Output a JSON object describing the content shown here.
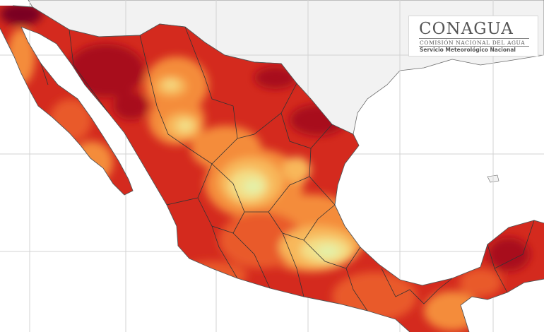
{
  "map": {
    "colors": {
      "background": "#ffffff",
      "ocean_gray": "#f0f0f0",
      "graticule": "#cfcfcf",
      "coastline": "#555555",
      "state_borders": "#333333",
      "scale": [
        "#7a0020",
        "#a8101f",
        "#d42a1e",
        "#e95a2a",
        "#f48c3a",
        "#f8b75a",
        "#f3df87",
        "#e4f0a8"
      ]
    },
    "note": ""
  },
  "logo": {
    "title": "CONAGUA",
    "line1": "COMISIÓN NACIONAL DEL AGUA",
    "line2": "Servicio Meteorológico Nacional"
  }
}
